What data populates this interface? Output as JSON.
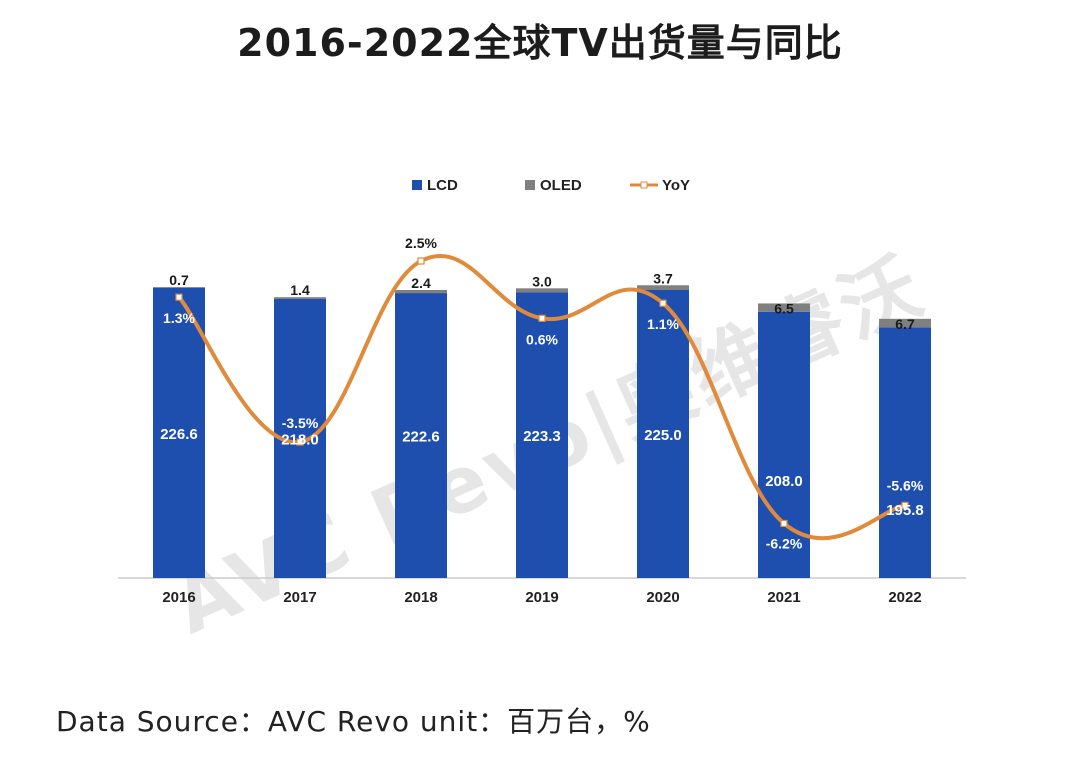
{
  "title": "2016-2022全球TV出货量与同比",
  "source_note": "Data Source：AVC Revo  unit：百万台，%",
  "watermark": "AVC Revo|奥维睿沃",
  "colors": {
    "lcd": "#1f4fae",
    "oled": "#808080",
    "yoy": "#e08a3c",
    "axis": "#cccccc",
    "text": "#222222",
    "watermark": "#e6e6e6"
  },
  "chart_data": {
    "type": "bar",
    "stacked": true,
    "title": "2016-2022全球TV出货量与同比",
    "categories": [
      "2016",
      "2017",
      "2018",
      "2019",
      "2020",
      "2021",
      "2022"
    ],
    "series": [
      {
        "name": "LCD",
        "kind": "bar",
        "values": [
          226.6,
          218.0,
          222.6,
          223.3,
          225.0,
          208.0,
          195.8
        ],
        "labels": [
          "226.6",
          "218.0",
          "222.6",
          "223.3",
          "225.0",
          "208.0",
          "195.8"
        ]
      },
      {
        "name": "OLED",
        "kind": "bar",
        "values": [
          0.7,
          1.4,
          2.4,
          3.0,
          3.7,
          6.5,
          6.7
        ],
        "labels": [
          "0.7",
          "1.4",
          "2.4",
          "3.0",
          "3.7",
          "6.5",
          "6.7"
        ]
      },
      {
        "name": "YoY",
        "kind": "line",
        "axis": "secondary",
        "unit": "%",
        "values": [
          1.3,
          -3.5,
          2.5,
          0.6,
          1.1,
          -6.2,
          -5.6
        ],
        "labels": [
          "1.3%",
          "-3.5%",
          "2.5%",
          "0.6%",
          "1.1%",
          "-6.2%",
          "-5.6%"
        ]
      }
    ],
    "ylim": [
      0,
      230
    ],
    "y2lim": [
      -7.5,
      3.5
    ],
    "legend": [
      "LCD",
      "OLED",
      "YoY"
    ],
    "legend_position": "top",
    "grid": false
  }
}
